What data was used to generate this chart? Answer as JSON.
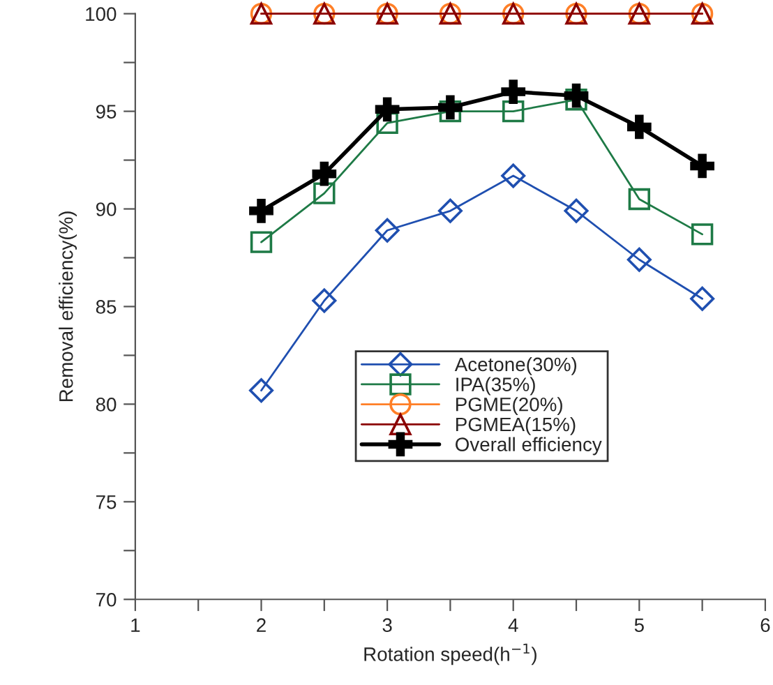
{
  "chart_data": {
    "type": "line",
    "xlabel": "Rotation speed(h$^{−1}$)",
    "ylabel": "Removal efficiency(%)",
    "x": [
      2,
      2.5,
      3,
      3.5,
      4,
      4.5,
      5,
      5.5
    ],
    "series": [
      {
        "name": "Acetone(30%)",
        "color": "#1f4fb0",
        "marker": "diamond",
        "values": [
          80.7,
          85.3,
          88.9,
          89.9,
          91.7,
          89.9,
          87.4,
          85.4
        ]
      },
      {
        "name": "IPA(35%)",
        "color": "#1e7a46",
        "marker": "square",
        "values": [
          88.3,
          90.8,
          94.4,
          95.0,
          95.0,
          95.6,
          90.5,
          88.7
        ]
      },
      {
        "name": "PGME(20%)",
        "color": "#ff7f27",
        "marker": "circle",
        "values": [
          100,
          100,
          100,
          100,
          100,
          100,
          100,
          100
        ]
      },
      {
        "name": "PGMEA(15%)",
        "color": "#8b0000",
        "marker": "triangle",
        "values": [
          100,
          100,
          100,
          100,
          100,
          100,
          100,
          100
        ]
      },
      {
        "name": "Overall efficiency",
        "color": "#000000",
        "marker": "cross",
        "values": [
          89.9,
          91.8,
          95.1,
          95.2,
          96.0,
          95.8,
          94.2,
          92.2
        ]
      }
    ],
    "xlim": [
      1,
      6
    ],
    "xticks": [
      1,
      {
        "value": 1.5,
        "label": null
      },
      2,
      {
        "value": 2.5,
        "label": null
      },
      3,
      {
        "value": 3.5,
        "label": null
      },
      4,
      {
        "value": 4.5,
        "label": null
      },
      5,
      {
        "value": 5.5,
        "label": null
      },
      6
    ],
    "ylim": [
      70,
      100
    ],
    "yticks": [
      70,
      {
        "value": 72.5,
        "label": null
      },
      75,
      {
        "value": 77.5,
        "label": null
      },
      80,
      {
        "value": 82.5,
        "label": null
      },
      85,
      {
        "value": 87.5,
        "label": null
      },
      90,
      {
        "value": 92.5,
        "label": null
      },
      95,
      {
        "value": 97.5,
        "label": null
      },
      100
    ],
    "legend": "center right",
    "grid": false,
    "line_style": "solid"
  }
}
